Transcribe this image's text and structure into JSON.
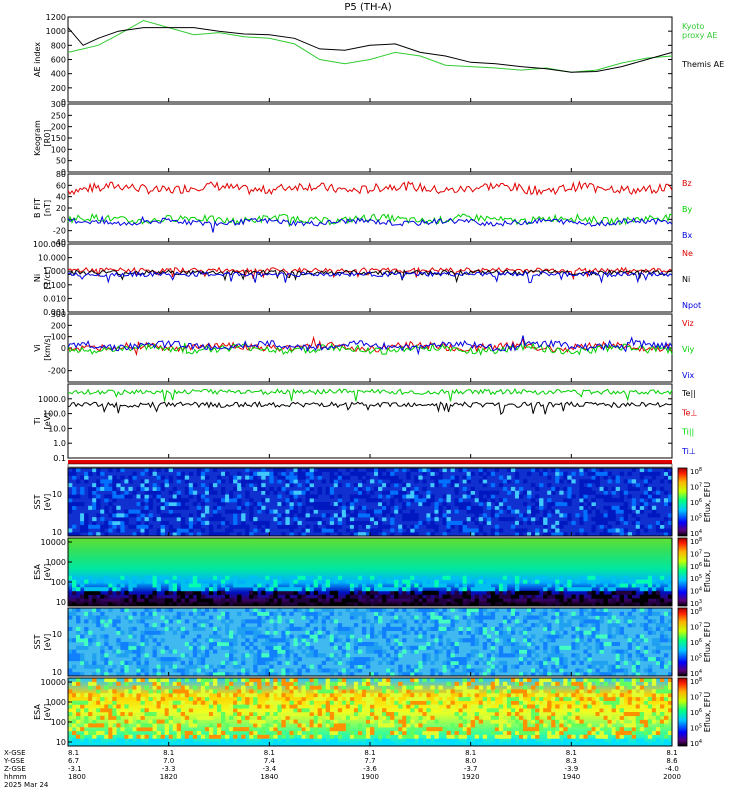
{
  "title": "P5 (TH-A)",
  "footer": {
    "row_labels": [
      "X-GSE",
      "Y-GSE",
      "Z-GSE",
      "hhmm",
      "2025 Mar 24"
    ],
    "columns": [
      {
        "x": "8.1",
        "y": "6.7",
        "z": "-3.1",
        "t": "1800"
      },
      {
        "x": "8.1",
        "y": "7.0",
        "z": "-3.3",
        "t": "1820"
      },
      {
        "x": "8.1",
        "y": "7.4",
        "z": "-3.4",
        "t": "1840"
      },
      {
        "x": "8.1",
        "y": "7.7",
        "z": "-3.6",
        "t": "1900"
      },
      {
        "x": "8.1",
        "y": "8.0",
        "z": "-3.7",
        "t": "1920"
      },
      {
        "x": "8.1",
        "y": "8.3",
        "z": "-3.9",
        "t": "1940"
      },
      {
        "x": "8.1",
        "y": "8.6",
        "z": "-4.0",
        "t": "2000"
      }
    ]
  },
  "colors": {
    "red": "#e00000",
    "green": "#00d000",
    "blue": "#0000e0",
    "black": "#000000",
    "ae_green": "#33cc33"
  },
  "chart_data": [
    {
      "id": "ae",
      "type": "line",
      "ylabel": "AE index",
      "ylim": [
        0,
        1200
      ],
      "yticks": [
        "0",
        "200",
        "400",
        "600",
        "800",
        "1000",
        "1200"
      ],
      "legend": [
        {
          "text": "Kyoto",
          "color": "#33cc33"
        },
        {
          "text": "proxy AE",
          "color": "#33cc33"
        },
        {
          "text": "Themis AE",
          "color": "#000000"
        }
      ],
      "series": [
        {
          "name": "Kyoto proxy AE",
          "color": "#33cc33",
          "x": [
            0,
            3,
            6,
            10,
            15,
            20,
            25,
            30,
            35,
            40,
            45,
            50,
            55,
            60,
            65,
            70,
            75,
            80,
            85,
            90,
            95,
            100,
            105,
            110,
            115,
            120
          ],
          "y": [
            700,
            750,
            800,
            950,
            1150,
            1050,
            950,
            980,
            920,
            900,
            820,
            600,
            540,
            600,
            700,
            650,
            520,
            500,
            480,
            450,
            480,
            420,
            450,
            550,
            620,
            650
          ]
        },
        {
          "name": "Themis AE",
          "color": "#000000",
          "x": [
            0,
            3,
            6,
            10,
            15,
            20,
            25,
            30,
            35,
            40,
            45,
            50,
            55,
            60,
            65,
            70,
            75,
            80,
            85,
            90,
            95,
            100,
            105,
            110,
            115,
            120
          ],
          "y": [
            1050,
            800,
            900,
            1000,
            1050,
            1050,
            1050,
            1000,
            960,
            950,
            900,
            750,
            730,
            800,
            820,
            700,
            650,
            560,
            540,
            500,
            470,
            420,
            430,
            500,
            600,
            700
          ]
        }
      ]
    },
    {
      "id": "kp",
      "type": "line",
      "ylabel": "Keogram",
      "units": "[R0]",
      "ylim": [
        0,
        300
      ],
      "yticks": [
        "0",
        "50",
        "100",
        "150",
        "200",
        "250",
        "300"
      ],
      "series": []
    },
    {
      "id": "bfield",
      "type": "line",
      "ylabel": "B FIT",
      "units": "[nT]",
      "ylim": [
        -40,
        80
      ],
      "yticks": [
        "-40",
        "-20",
        "0",
        "20",
        "40",
        "60",
        "80"
      ],
      "legend": [
        {
          "text": "Bz",
          "color": "#e00000"
        },
        {
          "text": "By",
          "color": "#00d000"
        },
        {
          "text": "Bx",
          "color": "#0000e0"
        }
      ],
      "series": [
        {
          "name": "Bz",
          "color": "#e00000",
          "base": 55,
          "amp": 10
        },
        {
          "name": "By",
          "color": "#00d000",
          "base": 0,
          "amp": 8
        },
        {
          "name": "Bx",
          "color": "#0000e0",
          "base": -5,
          "amp": 6
        }
      ]
    },
    {
      "id": "density",
      "type": "line",
      "ylabel": "Ni",
      "units": "[1/cc]",
      "ylog": true,
      "ylim": [
        0.001,
        100
      ],
      "yticks": [
        "0.001",
        "0.010",
        "0.100",
        "1.000",
        "10.000",
        "100.000"
      ],
      "legend": [
        {
          "text": "Ne",
          "color": "#e00000"
        },
        {
          "text": "Ni",
          "color": "#000000"
        },
        {
          "text": "Npot",
          "color": "#0000e0"
        }
      ],
      "series": [
        {
          "name": "Ne",
          "color": "#e00000",
          "base": 1.2
        },
        {
          "name": "Ni",
          "color": "#000000",
          "base": 0.8
        },
        {
          "name": "Npot",
          "color": "#0000e0",
          "base": 0.6
        }
      ]
    },
    {
      "id": "velocity",
      "type": "line",
      "ylabel": "Vi",
      "units": "[km/s]",
      "ylim": [
        -300,
        300
      ],
      "yticks": [
        "-200",
        "0",
        "100",
        "200",
        "300"
      ],
      "legend": [
        {
          "text": "Viz",
          "color": "#e00000"
        },
        {
          "text": "Viy",
          "color": "#00d000"
        },
        {
          "text": "Vix",
          "color": "#0000e0"
        }
      ],
      "series": [
        {
          "name": "Viz",
          "color": "#e00000",
          "base": 10,
          "amp": 40
        },
        {
          "name": "Viy",
          "color": "#00d000",
          "base": -10,
          "amp": 40
        },
        {
          "name": "Vix",
          "color": "#0000e0",
          "base": 20,
          "amp": 40
        }
      ]
    },
    {
      "id": "temperature",
      "type": "line",
      "ylabel": "Ti",
      "units": "[eV]",
      "ylog": true,
      "ylim": [
        0.1,
        10000
      ],
      "yticks": [
        "0.1",
        "1.0",
        "10.0",
        "100.0",
        "1000.0"
      ],
      "legend": [
        {
          "text": "Te||",
          "color": "#000000"
        },
        {
          "text": "Te⊥",
          "color": "#e00000"
        },
        {
          "text": "Ti||",
          "color": "#00d000"
        },
        {
          "text": "Ti⊥",
          "color": "#0000e0"
        }
      ],
      "series": [
        {
          "name": "Ti||",
          "color": "#00d000",
          "base": 3000
        },
        {
          "name": "Te||",
          "color": "#000000",
          "base": 400
        }
      ]
    },
    {
      "id": "sst_e",
      "type": "heatmap",
      "ylabel": "SST",
      "units": "[eV]",
      "ytick_base": "10",
      "colorbar": {
        "label": "Eflux, EFU",
        "ticks": [
          "4",
          "5",
          "6",
          "7",
          "8"
        ]
      }
    },
    {
      "id": "esa_i",
      "type": "heatmap",
      "ylabel": "ESA",
      "units": "[eV]",
      "yticks": [
        "10",
        "100",
        "1000",
        "10000"
      ],
      "colorbar": {
        "label": "Eflux, EFU",
        "ticks": [
          "3",
          "4",
          "5",
          "6",
          "7",
          "8"
        ]
      }
    },
    {
      "id": "sst_i",
      "type": "heatmap",
      "ylabel": "SST",
      "units": "[eV]",
      "ytick_base": "10",
      "colorbar": {
        "label": "Eflux, EFU",
        "ticks": [
          "4",
          "5",
          "6",
          "7",
          "8"
        ]
      }
    },
    {
      "id": "esa_e",
      "type": "heatmap",
      "ylabel": "ESA",
      "units": "[eV]",
      "yticks": [
        "10",
        "100",
        "1000",
        "10000"
      ],
      "colorbar": {
        "label": "Eflux, EFU",
        "ticks": [
          "4",
          "5",
          "6",
          "7",
          "8"
        ]
      }
    }
  ]
}
